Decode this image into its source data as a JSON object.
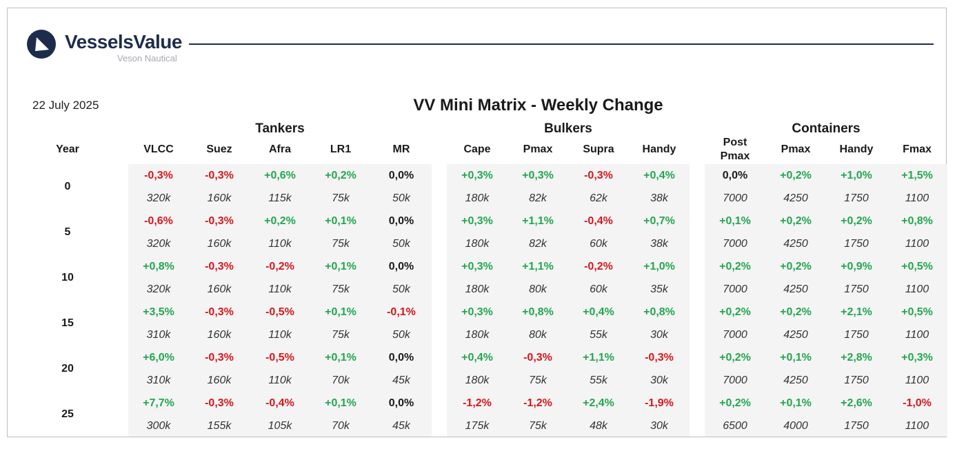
{
  "brand": {
    "name": "VesselsValue",
    "tagline": "Veson Nautical"
  },
  "colors": {
    "positive": "#23a650",
    "negative": "#d8161c",
    "neutral": "#1a1a1a",
    "brand": "#1e2c4c"
  },
  "date": "22 July 2025",
  "title": "VV Mini Matrix - Weekly Change",
  "year_header": "Year",
  "groups": [
    {
      "label": "Tankers",
      "columns": [
        "VLCC",
        "Suez",
        "Afra",
        "LR1",
        "MR"
      ]
    },
    {
      "label": "Bulkers",
      "columns": [
        "Cape",
        "Pmax",
        "Supra",
        "Handy"
      ]
    },
    {
      "label": "Containers",
      "columns": [
        "Post Pmax",
        "Pmax",
        "Handy",
        "Fmax"
      ]
    }
  ],
  "rows": [
    {
      "year": "0",
      "changes": [
        "-0,3%",
        "-0,3%",
        "+0,6%",
        "+0,2%",
        "0,0%",
        "+0,3%",
        "+0,3%",
        "-0,3%",
        "+0,4%",
        "0,0%",
        "+0,2%",
        "+1,0%",
        "+1,5%"
      ],
      "sizes": [
        "320k",
        "160k",
        "115k",
        "75k",
        "50k",
        "180k",
        "82k",
        "62k",
        "38k",
        "7000",
        "4250",
        "1750",
        "1100"
      ]
    },
    {
      "year": "5",
      "changes": [
        "-0,6%",
        "-0,3%",
        "+0,2%",
        "+0,1%",
        "0,0%",
        "+0,3%",
        "+1,1%",
        "-0,4%",
        "+0,7%",
        "+0,1%",
        "+0,2%",
        "+0,2%",
        "+0,8%"
      ],
      "sizes": [
        "320k",
        "160k",
        "110k",
        "75k",
        "50k",
        "180k",
        "82k",
        "60k",
        "38k",
        "7000",
        "4250",
        "1750",
        "1100"
      ]
    },
    {
      "year": "10",
      "changes": [
        "+0,8%",
        "-0,3%",
        "-0,2%",
        "+0,1%",
        "0,0%",
        "+0,3%",
        "+1,1%",
        "-0,2%",
        "+1,0%",
        "+0,2%",
        "+0,2%",
        "+0,9%",
        "+0,5%"
      ],
      "sizes": [
        "320k",
        "160k",
        "110k",
        "75k",
        "50k",
        "180k",
        "80k",
        "60k",
        "35k",
        "7000",
        "4250",
        "1750",
        "1100"
      ]
    },
    {
      "year": "15",
      "changes": [
        "+3,5%",
        "-0,3%",
        "-0,5%",
        "+0,1%",
        "-0,1%",
        "+0,3%",
        "+0,8%",
        "+0,4%",
        "+0,8%",
        "+0,2%",
        "+0,2%",
        "+2,1%",
        "+0,5%"
      ],
      "sizes": [
        "310k",
        "160k",
        "110k",
        "75k",
        "50k",
        "180k",
        "80k",
        "55k",
        "30k",
        "7000",
        "4250",
        "1750",
        "1100"
      ]
    },
    {
      "year": "20",
      "changes": [
        "+6,0%",
        "-0,3%",
        "-0,5%",
        "+0,1%",
        "0,0%",
        "+0,4%",
        "-0,3%",
        "+1,1%",
        "-0,3%",
        "+0,2%",
        "+0,1%",
        "+2,8%",
        "+0,3%"
      ],
      "sizes": [
        "310k",
        "160k",
        "110k",
        "70k",
        "45k",
        "180k",
        "75k",
        "55k",
        "30k",
        "7000",
        "4250",
        "1750",
        "1100"
      ]
    },
    {
      "year": "25",
      "changes": [
        "+7,7%",
        "-0,3%",
        "-0,4%",
        "+0,1%",
        "0,0%",
        "-1,2%",
        "-1,2%",
        "+2,4%",
        "-1,9%",
        "+0,2%",
        "+0,1%",
        "+2,6%",
        "-1,0%"
      ],
      "sizes": [
        "300k",
        "155k",
        "105k",
        "70k",
        "45k",
        "175k",
        "75k",
        "48k",
        "30k",
        "6500",
        "4000",
        "1750",
        "1100"
      ]
    }
  ]
}
